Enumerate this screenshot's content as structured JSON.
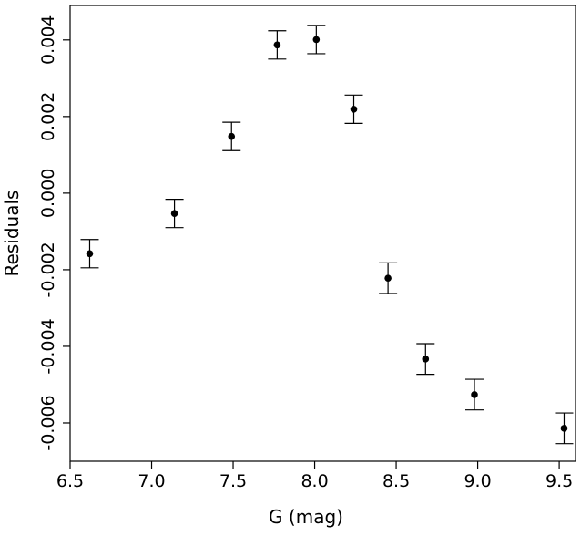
{
  "chart_data": {
    "type": "scatter",
    "title": "",
    "xlabel": "G (mag)",
    "ylabel": "Residuals",
    "xlim": [
      6.5,
      9.6
    ],
    "ylim": [
      -0.007,
      0.0049
    ],
    "x_ticks": [
      6.5,
      7.0,
      7.5,
      8.0,
      8.5,
      9.0,
      9.5
    ],
    "x_tick_labels": [
      "6.5",
      "7.0",
      "7.5",
      "8.0",
      "8.5",
      "9.0",
      "9.5"
    ],
    "y_ticks": [
      0.004,
      0.002,
      0.0,
      -0.002,
      -0.004,
      -0.006
    ],
    "y_tick_labels": [
      "0.004",
      "0.002",
      "0.000",
      "-0.002",
      "-0.004",
      "-0.006"
    ],
    "grid": false,
    "legend": "none",
    "error_bars": true,
    "series": [
      {
        "x": [
          6.62,
          7.14,
          7.49,
          7.77,
          8.01,
          8.24,
          8.45,
          8.68,
          8.98,
          9.53
        ],
        "y": [
          -0.00158,
          -0.00053,
          0.00148,
          0.00387,
          0.00401,
          0.00219,
          -0.00222,
          -0.00433,
          -0.00526,
          -0.00614
        ],
        "yerr": [
          0.00037,
          0.00037,
          0.00037,
          0.00037,
          0.00037,
          0.00037,
          0.0004,
          0.0004,
          0.0004,
          0.0004
        ]
      }
    ]
  }
}
